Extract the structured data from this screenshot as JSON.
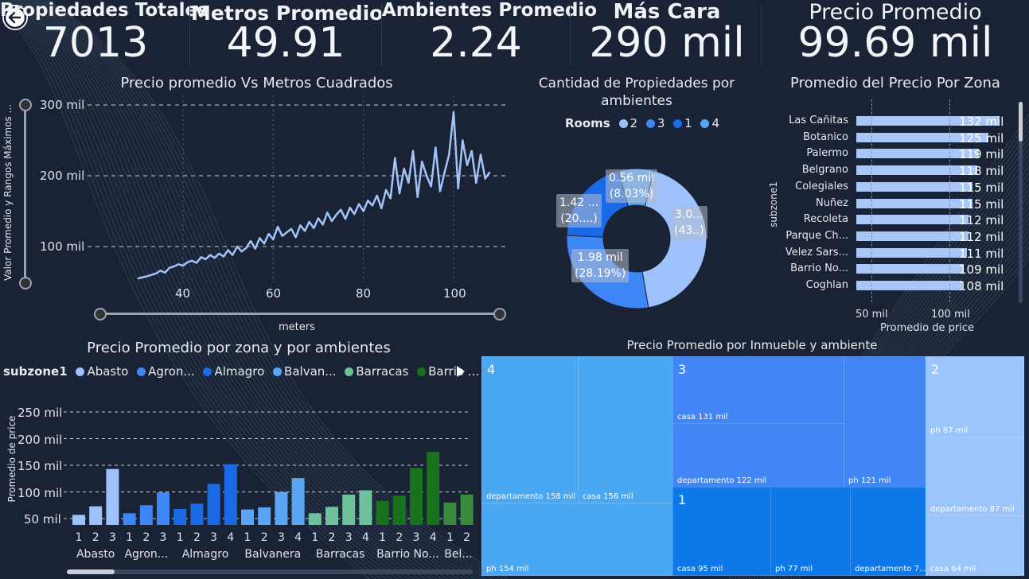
{
  "kpis": [
    {
      "title": "Propiedades Totales",
      "value": "7013"
    },
    {
      "title": "Metros Promedio",
      "value": "49.91"
    },
    {
      "title": "Ambientes Promedio",
      "value": "2.24"
    },
    {
      "title": "Más Cara",
      "value": "290 mil"
    },
    {
      "title": "Precio Promedio",
      "value": "99.69 mil"
    }
  ],
  "line_chart": {
    "title": "Precio promedio Vs Metros Cuadrados",
    "ylabel": "Valor Promedio y Rangos Máximos ...",
    "xlabel": "meters",
    "yticks": [
      "300 mil",
      "200 mil",
      "100 mil"
    ],
    "xticks": [
      "40",
      "60",
      "80",
      "100"
    ]
  },
  "donut": {
    "title": "Cantidad de Propiedades por ambientes",
    "legend_title": "Rooms",
    "legend": [
      "2",
      "3",
      "1",
      "4"
    ],
    "labels": [
      {
        "value": "3.0...",
        "pct": "(43..)"
      },
      {
        "value": "1.98 mil",
        "pct": "(28.19%)"
      },
      {
        "value": "1.42 ...",
        "pct": "(20....)"
      },
      {
        "value": "0.56 mil",
        "pct": "(8.03%)"
      }
    ]
  },
  "zone_bars": {
    "title": "Promedio del Precio Por Zona",
    "ylabel": "subzone1",
    "xlabel": "Promedio de price",
    "xticks": [
      "50 mil",
      "100 mil"
    ]
  },
  "grouped": {
    "title": "Precio Promedio por zona y por ambientes",
    "legend_title": "subzone1",
    "legend": [
      "Abasto",
      "Agron...",
      "Almagro",
      "Balvan...",
      "Barracas",
      "Barrio ..."
    ],
    "ylabel": "Promedio de price",
    "yticks": [
      "250 mil",
      "200 mil",
      "150 mil",
      "100 mil",
      "50 mil"
    ],
    "groups": [
      "Abasto",
      "Agron...",
      "Almagro",
      "Balvanera",
      "Barracas",
      "Barrio No...",
      "Bel..."
    ]
  },
  "treemap": {
    "title": "Precio Promedio por Inmueble y ambiente",
    "groups": [
      {
        "head": "4",
        "cells": [
          "departamento 158 mil",
          "casa 156 mil",
          "ph 154 mil"
        ]
      },
      {
        "head": "3",
        "cells": [
          "casa 131 mil",
          "departamento 122 mil",
          "ph 121 mil"
        ]
      },
      {
        "head": "1",
        "cells": [
          "casa 95 mil",
          "ph 77 mil",
          "departamento 7..."
        ]
      },
      {
        "head": "2",
        "cells": [
          "ph 87 mil",
          "departamento 87 mil",
          "casa 64 mil"
        ]
      }
    ]
  },
  "chart_data": [
    {
      "type": "line",
      "title": "Precio promedio Vs Metros Cuadrados",
      "xlabel": "meters",
      "ylabel": "Valor Promedio y Rangos Máximos ...",
      "ylim": [
        0,
        320000
      ],
      "x": [
        30,
        32,
        34,
        35,
        36,
        37,
        38,
        39,
        40,
        41,
        42,
        43,
        44,
        45,
        46,
        47,
        48,
        49,
        50,
        51,
        52,
        53,
        54,
        55,
        56,
        57,
        58,
        59,
        60,
        61,
        62,
        63,
        64,
        65,
        66,
        67,
        68,
        69,
        70,
        71,
        72,
        73,
        74,
        75,
        76,
        77,
        78,
        79,
        80,
        81,
        82,
        83,
        84,
        85,
        86,
        87,
        88,
        89,
        90,
        91,
        92,
        93,
        94,
        95,
        96,
        97,
        98,
        99,
        100,
        101,
        102,
        103,
        104,
        105,
        106,
        107,
        108
      ],
      "y": [
        55000,
        58000,
        62000,
        66000,
        63000,
        70000,
        72000,
        75000,
        73000,
        78000,
        80000,
        77000,
        85000,
        82000,
        88000,
        84000,
        90000,
        86000,
        95000,
        88000,
        100000,
        93000,
        98000,
        108000,
        97000,
        112000,
        104000,
        118000,
        110000,
        128000,
        115000,
        120000,
        125000,
        113000,
        130000,
        122000,
        135000,
        126000,
        140000,
        131000,
        148000,
        136000,
        145000,
        152000,
        139000,
        155000,
        146000,
        160000,
        150000,
        165000,
        158000,
        172000,
        154000,
        180000,
        168000,
        225000,
        175000,
        210000,
        190000,
        235000,
        170000,
        220000,
        200000,
        185000,
        240000,
        178000,
        205000,
        230000,
        290000,
        182000,
        250000,
        215000,
        235000,
        190000,
        230000,
        196000,
        205000
      ]
    },
    {
      "type": "pie",
      "title": "Cantidad de Propiedades por ambientes",
      "categories": [
        "3",
        "2",
        "1",
        "4"
      ],
      "values": [
        43.0,
        28.19,
        20.0,
        8.03
      ]
    },
    {
      "type": "bar",
      "title": "Promedio del Precio Por Zona",
      "xlabel": "Promedio de price",
      "ylabel": "subzone1",
      "categories": [
        "Las Cañitas",
        "Botanico",
        "Palermo",
        "Belgrano",
        "Colegiales",
        "Nuñez",
        "Recoleta",
        "Parque Ch...",
        "Velez Sars...",
        "Barrio No...",
        "Coghlan"
      ],
      "labels": [
        "132 mil",
        "125 mil",
        "119 mil",
        "118 mil",
        "115 mil",
        "115 mil",
        "112 mil",
        "112 mil",
        "111 mil",
        "109 mil",
        "108 mil"
      ],
      "values": [
        132000,
        125000,
        119000,
        118000,
        115000,
        115000,
        112000,
        112000,
        111000,
        109000,
        108000
      ]
    },
    {
      "type": "bar",
      "title": "Precio Promedio por zona y por ambientes",
      "ylabel": "Promedio de price",
      "ylim": [
        0,
        260000
      ],
      "bars": [
        {
          "zone": "Abasto",
          "room": "1",
          "value": 57000,
          "color": "#9cc1fb"
        },
        {
          "zone": "Abasto",
          "room": "2",
          "value": 73000,
          "color": "#9cc1fb"
        },
        {
          "zone": "Abasto",
          "room": "3",
          "value": 143000,
          "color": "#9cc1fb"
        },
        {
          "zone": "Agron...",
          "room": "1",
          "value": 60000,
          "color": "#3e85f5"
        },
        {
          "zone": "Agron...",
          "room": "2",
          "value": 75000,
          "color": "#3e85f5"
        },
        {
          "zone": "Agron...",
          "room": "3",
          "value": 99000,
          "color": "#3e85f5"
        },
        {
          "zone": "Almagro",
          "room": "1",
          "value": 68000,
          "color": "#1a6ae6"
        },
        {
          "zone": "Almagro",
          "room": "2",
          "value": 78000,
          "color": "#1a6ae6"
        },
        {
          "zone": "Almagro",
          "room": "3",
          "value": 115000,
          "color": "#1a6ae6"
        },
        {
          "zone": "Almagro",
          "room": "4",
          "value": 152000,
          "color": "#1a6ae6"
        },
        {
          "zone": "Balvanera",
          "room": "1",
          "value": 67000,
          "color": "#5aa6f5"
        },
        {
          "zone": "Balvanera",
          "room": "2",
          "value": 71000,
          "color": "#5aa6f5"
        },
        {
          "zone": "Balvanera",
          "room": "3",
          "value": 100000,
          "color": "#5aa6f5"
        },
        {
          "zone": "Balvanera",
          "room": "4",
          "value": 126000,
          "color": "#5aa6f5"
        },
        {
          "zone": "Barracas",
          "room": "1",
          "value": 60000,
          "color": "#6fc39c"
        },
        {
          "zone": "Barracas",
          "room": "2",
          "value": 72000,
          "color": "#6fc39c"
        },
        {
          "zone": "Barracas",
          "room": "3",
          "value": 95000,
          "color": "#6fc39c"
        },
        {
          "zone": "Barracas",
          "room": "4",
          "value": 103000,
          "color": "#6fc39c"
        },
        {
          "zone": "Barrio No...",
          "room": "1",
          "value": 83000,
          "color": "#19731d"
        },
        {
          "zone": "Barrio No...",
          "room": "2",
          "value": 93000,
          "color": "#19731d"
        },
        {
          "zone": "Barrio No...",
          "room": "3",
          "value": 145000,
          "color": "#19731d"
        },
        {
          "zone": "Barrio No...",
          "room": "4",
          "value": 175000,
          "color": "#19731d"
        },
        {
          "zone": "Bel...",
          "room": "1",
          "value": 80000,
          "color": "#3a8a3e"
        },
        {
          "zone": "Bel...",
          "room": "2",
          "value": 95000,
          "color": "#3a8a3e"
        }
      ]
    }
  ]
}
